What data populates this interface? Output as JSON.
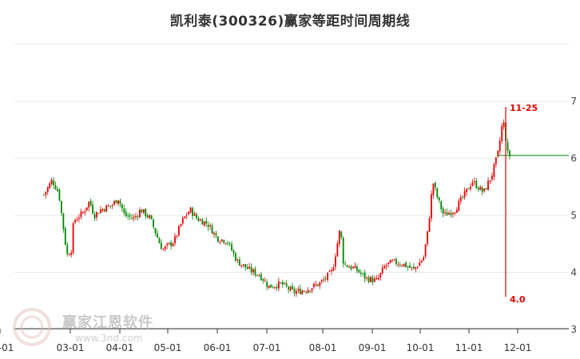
{
  "chart_data": {
    "type": "candlestick",
    "title": "凯利泰(300326)赢家等距时间周期线",
    "y_ticks": [
      "3",
      "4",
      "5",
      "6",
      "7"
    ],
    "ylim": [
      3.0,
      7.0
    ],
    "x_ticks": [
      "03-01",
      "04-01",
      "05-01",
      "06-01",
      "07-01",
      "08-01",
      "09-01",
      "10-01",
      "11-01",
      "12-01",
      "01-01"
    ],
    "grid": true,
    "up_color": "#e60000",
    "down_color": "#008800",
    "close_series": [
      [
        "02-13",
        5.36
      ],
      [
        "02-18",
        5.62
      ],
      [
        "02-22",
        5.4
      ],
      [
        "02-27",
        4.3
      ],
      [
        "03-02",
        4.42
      ],
      [
        "03-03",
        4.9
      ],
      [
        "03-09",
        5.05
      ],
      [
        "03-13",
        5.25
      ],
      [
        "03-16",
        5.0
      ],
      [
        "03-20",
        5.1
      ],
      [
        "03-27",
        5.18
      ],
      [
        "03-31",
        5.3
      ],
      [
        "04-04",
        5.0
      ],
      [
        "04-10",
        4.95
      ],
      [
        "04-14",
        5.1
      ],
      [
        "04-20",
        4.95
      ],
      [
        "04-26",
        4.5
      ],
      [
        "04-28",
        4.4
      ],
      [
        "05-05",
        4.55
      ],
      [
        "05-10",
        4.9
      ],
      [
        "05-15",
        5.1
      ],
      [
        "05-19",
        4.95
      ],
      [
        "05-26",
        4.85
      ],
      [
        "06-01",
        4.6
      ],
      [
        "06-07",
        4.55
      ],
      [
        "06-13",
        4.2
      ],
      [
        "06-20",
        4.05
      ],
      [
        "06-27",
        3.95
      ],
      [
        "07-02",
        3.75
      ],
      [
        "07-09",
        3.8
      ],
      [
        "07-16",
        3.65
      ],
      [
        "07-23",
        3.7
      ],
      [
        "07-30",
        3.8
      ],
      [
        "08-01",
        3.85
      ],
      [
        "08-07",
        4.02
      ],
      [
        "08-12",
        4.8
      ],
      [
        "08-14",
        4.15
      ],
      [
        "08-22",
        4.05
      ],
      [
        "08-28",
        3.9
      ],
      [
        "09-04",
        3.85
      ],
      [
        "09-09",
        4.12
      ],
      [
        "09-14",
        4.18
      ],
      [
        "09-20",
        4.15
      ],
      [
        "09-27",
        4.05
      ],
      [
        "10-03",
        4.25
      ],
      [
        "10-06",
        4.75
      ],
      [
        "10-09",
        5.6
      ],
      [
        "10-12",
        5.3
      ],
      [
        "10-16",
        5.0
      ],
      [
        "10-23",
        5.1
      ],
      [
        "10-30",
        5.4
      ],
      [
        "11-03",
        5.6
      ],
      [
        "11-10",
        5.4
      ],
      [
        "11-15",
        5.7
      ],
      [
        "11-19",
        6.1
      ],
      [
        "11-22",
        6.7
      ],
      [
        "11-25",
        6.05
      ],
      [
        "11-27",
        6.05
      ]
    ],
    "reference_line": {
      "value": 6.05,
      "color": "#008800"
    },
    "cycle_marker": {
      "date": "11-25",
      "label_top": "11-25",
      "label_bottom": "4.0",
      "color": "#e60000"
    }
  },
  "watermark": {
    "text": "赢家江恩软件",
    "url": "www.3nd.com"
  }
}
